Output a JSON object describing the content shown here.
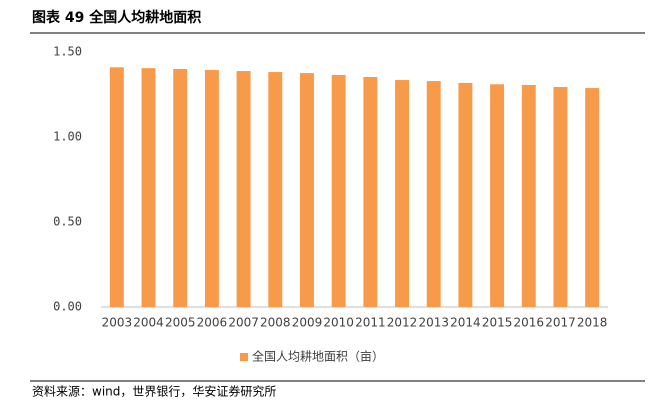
{
  "chart_data": {
    "type": "bar",
    "title": "图表 49  全国人均耕地面积",
    "categories": [
      "2003",
      "2004",
      "2005",
      "2006",
      "2007",
      "2008",
      "2009",
      "2010",
      "2011",
      "2012",
      "2013",
      "2014",
      "2015",
      "2016",
      "2017",
      "2018"
    ],
    "series": [
      {
        "name": "全国人均耕地面积（亩）",
        "color": "#f79a4a",
        "values": [
          1.41,
          1.405,
          1.4,
          1.394,
          1.388,
          1.382,
          1.376,
          1.365,
          1.353,
          1.335,
          1.329,
          1.318,
          1.31,
          1.306,
          1.294,
          1.288
        ]
      }
    ],
    "ylim": [
      0,
      1.5
    ],
    "yticks": [
      {
        "value": 0,
        "label": "0.00"
      },
      {
        "value": 0.5,
        "label": "0.50"
      },
      {
        "value": 1,
        "label": "1.00"
      },
      {
        "value": 1.5,
        "label": "1.50"
      }
    ],
    "grid": false,
    "legend": "bottom",
    "source": "资料来源：wind，世界银行，华安证券研究所"
  }
}
